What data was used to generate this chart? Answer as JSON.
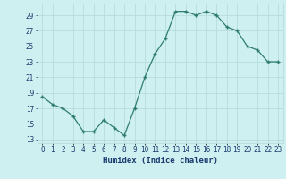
{
  "x": [
    0,
    1,
    2,
    3,
    4,
    5,
    6,
    7,
    8,
    9,
    10,
    11,
    12,
    13,
    14,
    15,
    16,
    17,
    18,
    19,
    20,
    21,
    22,
    23
  ],
  "y": [
    18.5,
    17.5,
    17.0,
    16.0,
    14.0,
    14.0,
    15.5,
    14.5,
    13.5,
    17.0,
    21.0,
    24.0,
    26.0,
    29.5,
    29.5,
    29.0,
    29.5,
    29.0,
    27.5,
    27.0,
    25.0,
    24.5,
    23.0,
    23.0
  ],
  "xlabel": "Humidex (Indice chaleur)",
  "xlim": [
    -0.5,
    23.5
  ],
  "ylim": [
    12.5,
    30.5
  ],
  "yticks": [
    13,
    15,
    17,
    19,
    21,
    23,
    25,
    27,
    29
  ],
  "xtick_labels": [
    "0",
    "1",
    "2",
    "3",
    "4",
    "5",
    "6",
    "7",
    "8",
    "9",
    "10",
    "11",
    "12",
    "13",
    "14",
    "15",
    "16",
    "17",
    "18",
    "19",
    "20",
    "21",
    "22",
    "23"
  ],
  "line_color": "#2e7d6e",
  "marker": "+",
  "bg_color": "#cff0f0",
  "grid_color": "#b8dcdc",
  "tick_color": "#1a3a6e",
  "xlabel_color": "#1a3a6e",
  "linewidth": 0.9,
  "markersize": 3.5,
  "markeredgewidth": 1.0,
  "tick_fontsize": 5.5,
  "xlabel_fontsize": 6.5
}
